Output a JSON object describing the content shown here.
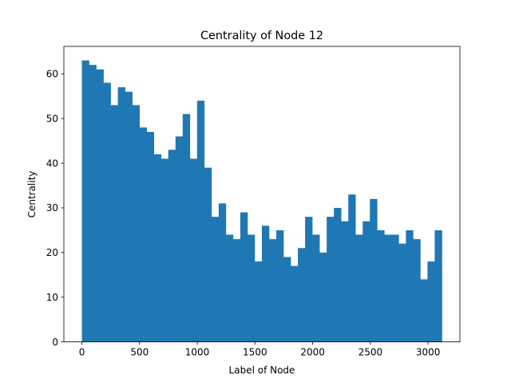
{
  "chart_data": {
    "type": "bar",
    "title": "Centrality of Node 12",
    "xlabel": "Label of Node",
    "ylabel": "Centrality",
    "color": "#1f77b4",
    "bin_start": 0,
    "bin_width": 62.4,
    "values": [
      63,
      62,
      61,
      58,
      53,
      57,
      56,
      53,
      48,
      47,
      42,
      41,
      43,
      46,
      51,
      41,
      54,
      39,
      28,
      31,
      24,
      23,
      29,
      24,
      18,
      26,
      23,
      25,
      19,
      17,
      21,
      28,
      24,
      20,
      28,
      30,
      27,
      33,
      24,
      27,
      32,
      25,
      24,
      24,
      22,
      25,
      23,
      14,
      18,
      25
    ],
    "xlim": [
      -156,
      3276
    ],
    "ylim": [
      0,
      66.15
    ],
    "xticks": [
      0,
      500,
      1000,
      1500,
      2000,
      2500,
      3000
    ],
    "yticks": [
      0,
      10,
      20,
      30,
      40,
      50,
      60
    ]
  }
}
